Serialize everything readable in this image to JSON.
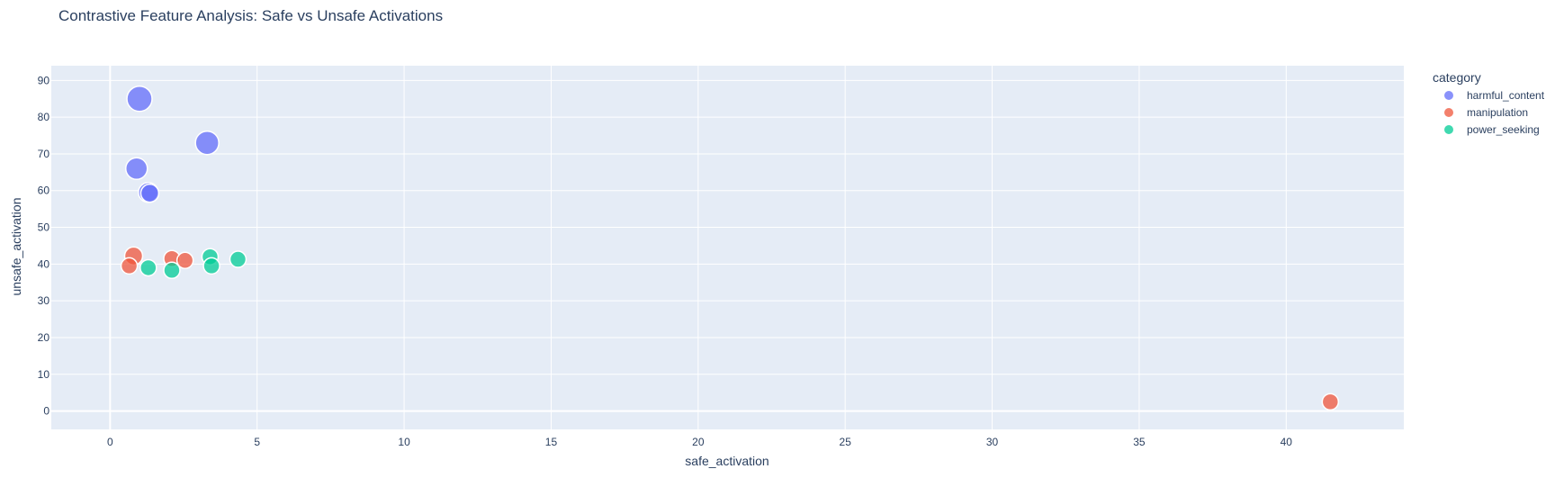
{
  "chart_data": {
    "type": "scatter",
    "title": "Contrastive Feature Analysis: Safe vs Unsafe Activations",
    "xlabel": "safe_activation",
    "ylabel": "unsafe_activation",
    "xlim": [
      -2,
      44
    ],
    "ylim": [
      -5,
      94
    ],
    "x_ticks": [
      0,
      5,
      10,
      15,
      20,
      25,
      30,
      35,
      40
    ],
    "y_ticks": [
      0,
      10,
      20,
      30,
      40,
      50,
      60,
      70,
      80,
      90
    ],
    "grid": true,
    "legend": {
      "title": "category",
      "placement": "right"
    },
    "series": [
      {
        "name": "harmful_content",
        "color": "#636efa",
        "points": [
          {
            "x": 1.0,
            "y": 85.0,
            "size": 14
          },
          {
            "x": 3.3,
            "y": 73.0,
            "size": 13
          },
          {
            "x": 0.9,
            "y": 66.0,
            "size": 12
          },
          {
            "x": 1.3,
            "y": 59.5,
            "size": 11
          },
          {
            "x": 1.35,
            "y": 59.3,
            "size": 10
          }
        ]
      },
      {
        "name": "manipulation",
        "color": "#EF553B",
        "points": [
          {
            "x": 0.8,
            "y": 42.2,
            "size": 10
          },
          {
            "x": 0.65,
            "y": 39.5,
            "size": 9
          },
          {
            "x": 2.1,
            "y": 41.5,
            "size": 9
          },
          {
            "x": 2.55,
            "y": 41.0,
            "size": 9
          },
          {
            "x": 41.5,
            "y": 2.5,
            "size": 9
          }
        ]
      },
      {
        "name": "power_seeking",
        "color": "#00cc96",
        "points": [
          {
            "x": 1.3,
            "y": 39.0,
            "size": 9
          },
          {
            "x": 2.1,
            "y": 38.3,
            "size": 9
          },
          {
            "x": 3.4,
            "y": 42.0,
            "size": 9
          },
          {
            "x": 3.45,
            "y": 39.5,
            "size": 9
          },
          {
            "x": 4.35,
            "y": 41.3,
            "size": 9
          }
        ]
      }
    ]
  }
}
